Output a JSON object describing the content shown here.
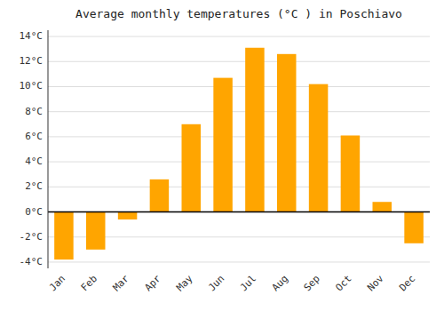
{
  "chart_data": {
    "type": "bar",
    "title": "Average monthly temperatures (°C ) in Poschiavo",
    "categories": [
      "Jan",
      "Feb",
      "Mar",
      "Apr",
      "May",
      "Jun",
      "Jul",
      "Aug",
      "Sep",
      "Oct",
      "Nov",
      "Dec"
    ],
    "values": [
      -3.8,
      -3.0,
      -0.6,
      2.6,
      7.0,
      10.7,
      13.1,
      12.6,
      10.2,
      6.1,
      0.8,
      -2.5
    ],
    "color": "#FFA500",
    "ylim": [
      -4.5,
      14.5
    ],
    "yticks": [
      {
        "value": -4,
        "label": "-4°C"
      },
      {
        "value": -2,
        "label": "-2°C"
      },
      {
        "value": 0,
        "label": "0°C"
      },
      {
        "value": 2,
        "label": "2°C"
      },
      {
        "value": 4,
        "label": "4°C"
      },
      {
        "value": 6,
        "label": "6°C"
      },
      {
        "value": 8,
        "label": "8°C"
      },
      {
        "value": 10,
        "label": "10°C"
      },
      {
        "value": 12,
        "label": "12°C"
      },
      {
        "value": 14,
        "label": "14°C"
      }
    ],
    "grid": true
  }
}
